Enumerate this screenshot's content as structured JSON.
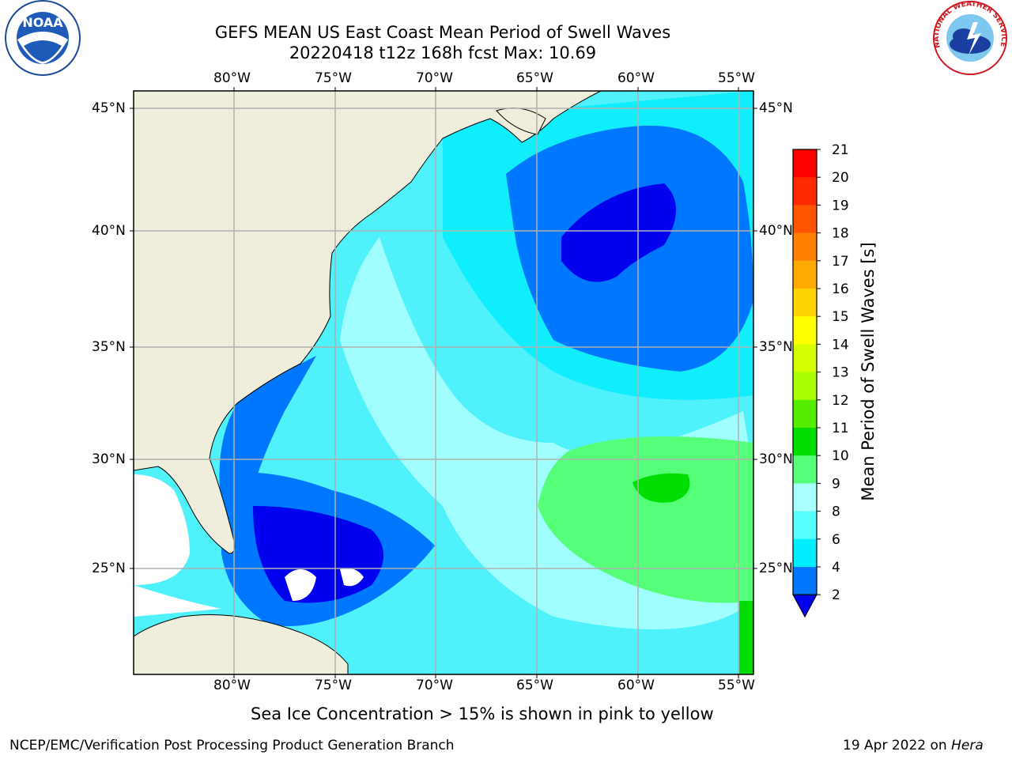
{
  "header": {
    "title_line1": "GEFS MEAN US East Coast Mean Period of Swell Waves",
    "title_line2": "20220418 t12z 168h fcst   Max: 10.69",
    "left_logo_text": "NOAA",
    "left_logo_ring": "NATIONAL OCEANIC AND ATMOSPHERIC ADMINISTRATION · U.S. DEPARTMENT OF COMMERCE",
    "right_logo_ring": "NATIONAL WEATHER SERVICE"
  },
  "map": {
    "lon_labels": [
      "80°W",
      "75°W",
      "70°W",
      "65°W",
      "60°W",
      "55°W"
    ],
    "lat_labels": [
      "45°N",
      "40°N",
      "35°N",
      "30°N",
      "25°N"
    ],
    "grid": true,
    "land_color": "#efeedc",
    "ocean_base_color": "#4ff1fb"
  },
  "colorbar": {
    "label": "Mean Period of Swell Waves [s]",
    "ticks": [
      "21",
      "20",
      "19",
      "18",
      "17",
      "16",
      "15",
      "14",
      "13",
      "12",
      "11",
      "10",
      "9",
      "8",
      "6",
      "4",
      "2"
    ],
    "colors": [
      "#ff0000",
      "#ff2a00",
      "#ff5500",
      "#ff8000",
      "#ffaa00",
      "#ffd400",
      "#ffff00",
      "#d4ff00",
      "#aaff00",
      "#55ee00",
      "#00dd00",
      "#55ff77",
      "#aaffff",
      "#55ffff",
      "#00eeff",
      "#0077ff"
    ],
    "extend_min_color": "#0000ee"
  },
  "footer": {
    "sea_ice_note": "Sea Ice Concentration > 15% is shown in pink to yellow",
    "credit": "NCEP/EMC/Verification Post Processing Product Generation Branch",
    "date": "19 Apr 2022 on ",
    "machine": "Hera"
  }
}
